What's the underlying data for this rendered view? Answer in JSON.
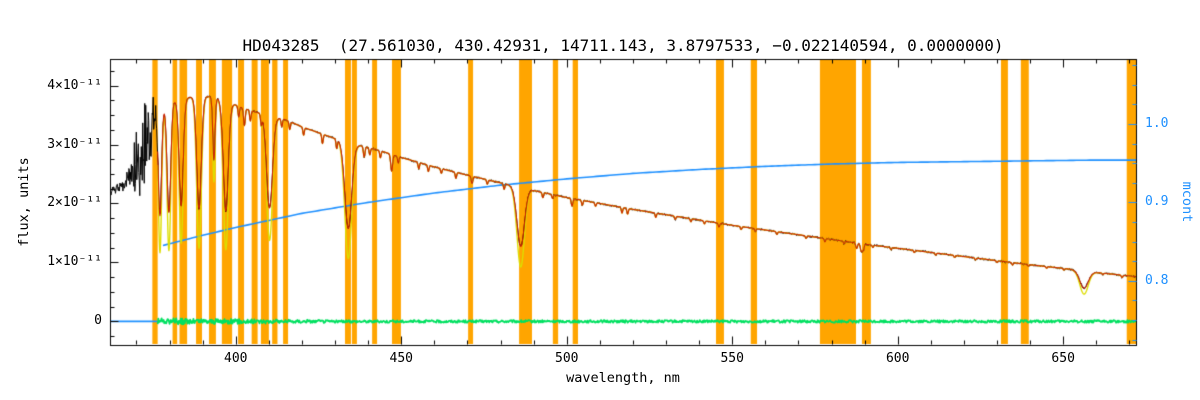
{
  "chart_data": {
    "type": "line",
    "title": "HD043285  (27.561030, 430.42931, 14711.143, 3.8797533, −0.022140594, 0.0000000)",
    "xlabel": "wavelength, nm",
    "ylabel_left": "flux, units",
    "ylabel_right": "mcont",
    "xlim": [
      362,
      672
    ],
    "ylim_left": [
      -0.4,
      4.45
    ],
    "ylim_right": [
      0.718,
      1.083
    ],
    "flux_unit": "1e-11",
    "x_ticks": [
      400,
      450,
      500,
      550,
      600,
      650
    ],
    "x_tick_labels": [
      "400",
      "450",
      "500",
      "550",
      "600",
      "650"
    ],
    "y_ticks_left": [
      0,
      1,
      2,
      3,
      4
    ],
    "y_tick_labels_left": [
      "0",
      "1×10⁻¹¹",
      "2×10⁻¹¹",
      "3×10⁻¹¹",
      "4×10⁻¹¹"
    ],
    "y_ticks_right": [
      0.8,
      0.9,
      1.0
    ],
    "y_tick_labels_right": [
      "0.8",
      "0.9",
      "1.0"
    ],
    "grid": false,
    "legend": "none",
    "colors": {
      "mask": "#FFA500",
      "observed": "#000000",
      "fit": "#CC2200",
      "fit_deep": "#DDDD00",
      "mcont": "#1E90FF",
      "residual": "#00E060",
      "frame": "#000000"
    },
    "series": [
      {
        "name": "observed spectrum",
        "color": "#000000",
        "axis": "left"
      },
      {
        "name": "model fit",
        "color": "#CC2200",
        "axis": "left"
      },
      {
        "name": "model fit deep cores",
        "color": "#DDDD00",
        "axis": "left"
      },
      {
        "name": "mcont continuum",
        "color": "#1E90FF",
        "axis": "right"
      },
      {
        "name": "residual",
        "color": "#00E060",
        "axis": "left"
      }
    ],
    "masks": [
      [
        374.8,
        376.4
      ],
      [
        380.9,
        382.3
      ],
      [
        383.0,
        385.3
      ],
      [
        388.0,
        389.8
      ],
      [
        391.9,
        394.0
      ],
      [
        395.8,
        398.9
      ],
      [
        400.7,
        402.5
      ],
      [
        404.8,
        406.6
      ],
      [
        407.6,
        410.0
      ],
      [
        411.0,
        412.6
      ],
      [
        414.3,
        415.8
      ],
      [
        433.0,
        434.8
      ],
      [
        435.1,
        436.6
      ],
      [
        441.2,
        442.7
      ],
      [
        447.2,
        449.9
      ],
      [
        470.2,
        471.7
      ],
      [
        485.6,
        489.5
      ],
      [
        495.8,
        497.4
      ],
      [
        501.8,
        503.4
      ],
      [
        545.1,
        547.5
      ],
      [
        555.6,
        557.5
      ],
      [
        576.5,
        587.4
      ],
      [
        589.2,
        591.9
      ],
      [
        631.2,
        633.3
      ],
      [
        637.2,
        639.6
      ],
      [
        669.2,
        672.0
      ]
    ],
    "continuum": [
      [
        362,
        2.2
      ],
      [
        364,
        2.25
      ],
      [
        366,
        2.3
      ],
      [
        368,
        2.5
      ],
      [
        370,
        2.7
      ],
      [
        372,
        2.9
      ],
      [
        374,
        3.2
      ],
      [
        376,
        3.5
      ],
      [
        378,
        3.65
      ],
      [
        382,
        3.75
      ],
      [
        386,
        3.8
      ],
      [
        390,
        3.82
      ],
      [
        394,
        3.8
      ],
      [
        398,
        3.72
      ],
      [
        402,
        3.62
      ],
      [
        406,
        3.55
      ],
      [
        410,
        3.5
      ],
      [
        415,
        3.42
      ],
      [
        420,
        3.3
      ],
      [
        425,
        3.2
      ],
      [
        430,
        3.1
      ],
      [
        435,
        3.02
      ],
      [
        440,
        2.95
      ],
      [
        445,
        2.87
      ],
      [
        450,
        2.78
      ],
      [
        460,
        2.62
      ],
      [
        470,
        2.48
      ],
      [
        480,
        2.35
      ],
      [
        490,
        2.22
      ],
      [
        500,
        2.1
      ],
      [
        510,
        2.0
      ],
      [
        520,
        1.9
      ],
      [
        530,
        1.81
      ],
      [
        540,
        1.72
      ],
      [
        550,
        1.63
      ],
      [
        560,
        1.55
      ],
      [
        570,
        1.47
      ],
      [
        580,
        1.39
      ],
      [
        590,
        1.31
      ],
      [
        600,
        1.24
      ],
      [
        610,
        1.17
      ],
      [
        620,
        1.1
      ],
      [
        630,
        1.03
      ],
      [
        640,
        0.96
      ],
      [
        650,
        0.9
      ],
      [
        660,
        0.83
      ],
      [
        672,
        0.76
      ]
    ],
    "lines_major": [
      [
        377.1,
        0.5,
        0.7
      ],
      [
        379.8,
        0.5,
        0.8
      ],
      [
        383.5,
        0.48,
        0.9
      ],
      [
        388.9,
        0.5,
        1.0
      ],
      [
        393.4,
        0.28,
        0.5
      ],
      [
        397.0,
        0.5,
        1.1
      ],
      [
        410.2,
        0.45,
        1.3
      ],
      [
        434.0,
        0.48,
        1.5
      ],
      [
        486.1,
        0.44,
        1.6
      ],
      [
        656.3,
        0.34,
        1.8
      ]
    ],
    "lines_minor": [
      [
        400.9,
        0.05,
        0.3
      ],
      [
        402.6,
        0.08,
        0.35
      ],
      [
        404.4,
        0.05,
        0.3
      ],
      [
        407.7,
        0.05,
        0.3
      ],
      [
        413.9,
        0.04,
        0.3
      ],
      [
        416.3,
        0.04,
        0.3
      ],
      [
        420.5,
        0.04,
        0.3
      ],
      [
        426.2,
        0.05,
        0.3
      ],
      [
        430.5,
        0.05,
        0.3
      ],
      [
        438.8,
        0.06,
        0.35
      ],
      [
        440.5,
        0.04,
        0.3
      ],
      [
        443.7,
        0.04,
        0.3
      ],
      [
        447.1,
        0.1,
        0.4
      ],
      [
        449.1,
        0.04,
        0.3
      ],
      [
        455.3,
        0.04,
        0.3
      ],
      [
        458.2,
        0.04,
        0.3
      ],
      [
        462.1,
        0.03,
        0.3
      ],
      [
        466.5,
        0.04,
        0.3
      ],
      [
        471.4,
        0.05,
        0.35
      ],
      [
        476.0,
        0.03,
        0.3
      ],
      [
        481.1,
        0.04,
        0.3
      ],
      [
        492.8,
        0.04,
        0.3
      ],
      [
        495.7,
        0.03,
        0.3
      ],
      [
        501.6,
        0.06,
        0.35
      ],
      [
        504.7,
        0.04,
        0.3
      ],
      [
        508.7,
        0.03,
        0.3
      ],
      [
        516.7,
        0.05,
        0.3
      ],
      [
        518.4,
        0.05,
        0.3
      ],
      [
        526.9,
        0.04,
        0.3
      ],
      [
        532.8,
        0.03,
        0.3
      ],
      [
        537.5,
        0.03,
        0.3
      ],
      [
        541.6,
        0.03,
        0.3
      ],
      [
        546.0,
        0.04,
        0.3
      ],
      [
        552.7,
        0.03,
        0.3
      ],
      [
        557.0,
        0.03,
        0.3
      ],
      [
        563.5,
        0.03,
        0.3
      ],
      [
        572.3,
        0.03,
        0.3
      ],
      [
        578.0,
        0.04,
        0.3
      ],
      [
        583.8,
        0.03,
        0.3
      ],
      [
        587.6,
        0.07,
        0.35
      ],
      [
        589.0,
        0.1,
        0.4
      ],
      [
        589.6,
        0.08,
        0.35
      ],
      [
        592.5,
        0.03,
        0.3
      ],
      [
        598.0,
        0.03,
        0.3
      ],
      [
        605.0,
        0.03,
        0.3
      ],
      [
        611.5,
        0.03,
        0.3
      ],
      [
        617.2,
        0.03,
        0.3
      ],
      [
        623.5,
        0.03,
        0.3
      ],
      [
        630.0,
        0.03,
        0.3
      ],
      [
        634.7,
        0.04,
        0.3
      ],
      [
        639.5,
        0.03,
        0.3
      ],
      [
        645.0,
        0.03,
        0.3
      ],
      [
        650.2,
        0.03,
        0.3
      ],
      [
        662.0,
        0.03,
        0.3
      ],
      [
        667.8,
        0.05,
        0.35
      ]
    ],
    "mcont": [
      [
        378,
        0.845
      ],
      [
        390,
        0.858
      ],
      [
        400,
        0.868
      ],
      [
        420,
        0.886
      ],
      [
        440,
        0.9
      ],
      [
        460,
        0.912
      ],
      [
        480,
        0.922
      ],
      [
        500,
        0.93
      ],
      [
        520,
        0.937
      ],
      [
        540,
        0.942
      ],
      [
        560,
        0.946
      ],
      [
        580,
        0.949
      ],
      [
        600,
        0.951
      ],
      [
        620,
        0.952
      ],
      [
        640,
        0.953
      ],
      [
        660,
        0.954
      ],
      [
        672,
        0.954
      ]
    ],
    "mcont_zero_segment": [
      362,
      376.2
    ],
    "fit_start": 376.4,
    "deep_scale": 1.35,
    "noise": {
      "base": 0.018,
      "burst_center": 372.3,
      "burst_amp": 0.72,
      "burst_width": 3.5
    },
    "residual": {
      "start": 376.4,
      "left_amp": 0.055,
      "base_amp": 0.022,
      "left_until": 430
    }
  }
}
